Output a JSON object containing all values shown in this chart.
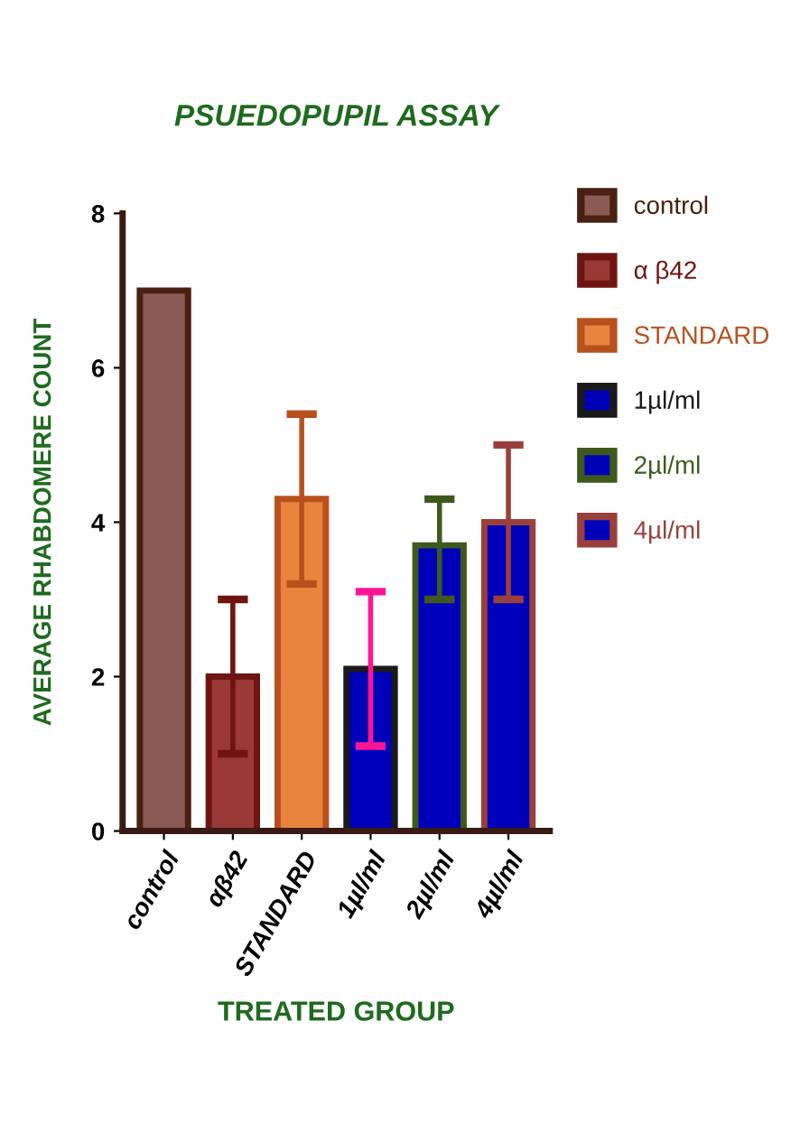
{
  "chart_data": {
    "type": "bar",
    "title": "PSUEDOPUPIL ASSAY",
    "xlabel": "TREATED GROUP",
    "ylabel": "AVERAGE RHABDOMERE COUNT",
    "categories": [
      "control",
      "αβ42",
      "STANDARD",
      "1µl/ml",
      "2µl/ml",
      "4µl/ml"
    ],
    "series": [
      {
        "name": "control",
        "color": "#8b5a53",
        "values": [
          7.0,
          null,
          null,
          null,
          null,
          null
        ]
      },
      {
        "name": "α β42",
        "color": "#9a3a36",
        "values": [
          null,
          2.0,
          null,
          null,
          null,
          null
        ],
        "errors": [
          null,
          [
            1.0,
            3.0
          ],
          null,
          null,
          null,
          null
        ]
      },
      {
        "name": "STANDARD",
        "color": "#e8843e",
        "values": [
          null,
          null,
          4.3,
          null,
          null,
          null
        ],
        "errors": [
          null,
          null,
          [
            3.2,
            5.4
          ],
          null,
          null,
          null
        ]
      },
      {
        "name": "1µl/ml",
        "color": "#0000bb",
        "values": [
          null,
          null,
          null,
          2.1,
          null,
          null
        ],
        "errors": [
          null,
          null,
          null,
          [
            1.1,
            3.1
          ],
          null,
          null
        ]
      },
      {
        "name": "2µl/ml",
        "color": "#0000bb",
        "values": [
          null,
          null,
          null,
          null,
          3.7,
          null
        ],
        "errors": [
          null,
          null,
          null,
          null,
          [
            3.0,
            4.3
          ],
          null
        ]
      },
      {
        "name": "4µl/ml",
        "color": "#0000bb",
        "values": [
          null,
          null,
          null,
          null,
          null,
          4.0
        ],
        "errors": [
          null,
          null,
          null,
          null,
          null,
          [
            3.0,
            5.0
          ]
        ]
      }
    ],
    "ylim": [
      0,
      8
    ],
    "yticks": [
      0,
      2,
      4,
      6,
      8
    ],
    "grid": false,
    "legend": "right"
  }
}
